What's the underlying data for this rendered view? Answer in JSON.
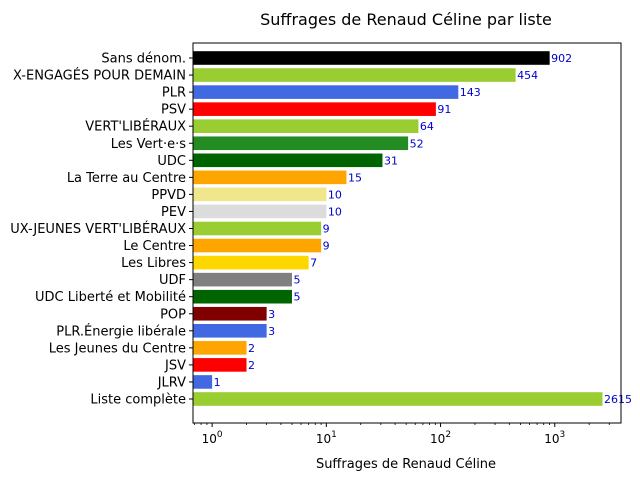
{
  "chart_data": {
    "type": "bar",
    "orientation": "horizontal",
    "title": "Suffrages de Renaud Céline par liste",
    "xlabel": "Suffrages de Renaud Céline",
    "ylabel": "",
    "xscale": "log",
    "xlim": [
      0.68,
      3800
    ],
    "grid": false,
    "x_tick_labels": [
      "10^0",
      "10^1",
      "10^2",
      "10^3"
    ],
    "label_color": "#0000cd",
    "categories": [
      "Sans dénom.",
      "X-ENGAGÉS POUR DEMAIN",
      "PLR",
      "PSV",
      "VERT'LIBÉRAUX",
      "Les Vert·e·s",
      "UDC",
      "La Terre au Centre",
      "PPVD",
      "PEV",
      "UX-JEUNES VERT'LIBÉRAUX",
      "Le Centre",
      "Les Libres",
      "UDF",
      "UDC Liberté et Mobilité",
      "POP",
      "PLR.Énergie libérale",
      "Les Jeunes du Centre",
      "JSV",
      "JLRV",
      "Liste complète"
    ],
    "values": [
      902,
      454,
      143,
      91,
      64,
      52,
      31,
      15,
      10,
      10,
      9,
      9,
      7,
      5,
      5,
      3,
      3,
      2,
      2,
      1,
      2615
    ],
    "colors": [
      "#000000",
      "#9acd32",
      "#4169e1",
      "#ff0000",
      "#9acd32",
      "#228b22",
      "#006400",
      "#ffa500",
      "#f0e68c",
      "#dcdcdc",
      "#9acd32",
      "#ffa500",
      "#ffd700",
      "#808080",
      "#006400",
      "#800000",
      "#4169e1",
      "#ffa500",
      "#ff0000",
      "#4169e1",
      "#9acd32"
    ]
  }
}
